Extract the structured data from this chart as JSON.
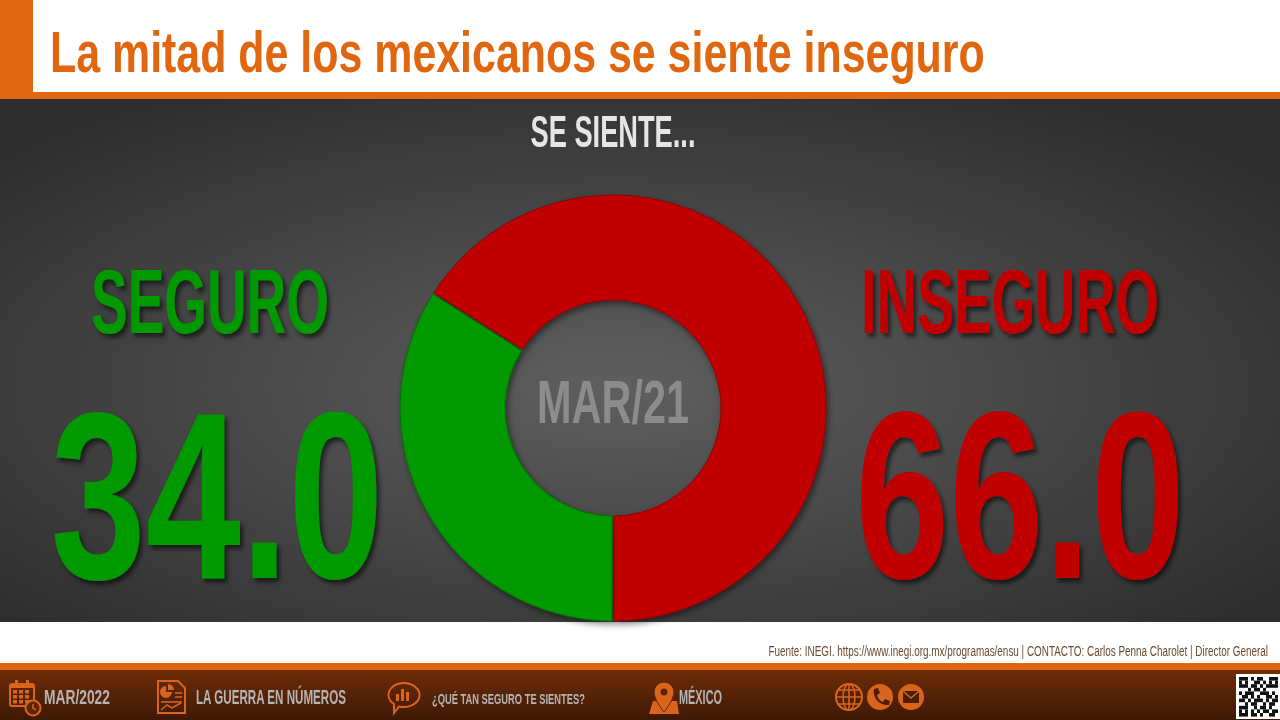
{
  "chart_data": {
    "type": "donut",
    "title": "La mitad de los mexicanos se siente inseguro",
    "subtitle": "SE SIENTE...",
    "categories": [
      "SEGURO",
      "INSEGURO"
    ],
    "values": [
      34,
      66
    ],
    "value_labels": [
      "34.0",
      "66.0"
    ],
    "colors": [
      "#009900",
      "#c00000"
    ],
    "annotations": [
      "MAR/21",
      "Fuente:  INEGI.  https://www.inegi.org.mx/programas/ensu  |  CONTACTO:  Carlos Penna Charolet  |  Director  General",
      "MAR/2022",
      "LA GUERRA  EN NÚMEROS",
      "¿QUÉ TAN SEGURO  TE SIENTES?",
      "MÉXICO"
    ]
  }
}
